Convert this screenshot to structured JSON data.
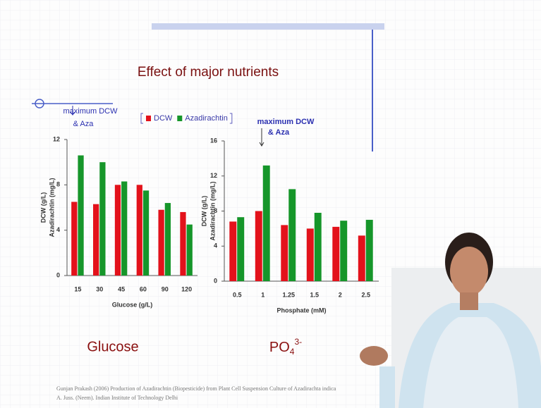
{
  "title": "Effect of major nutrients",
  "chart_data": [
    {
      "type": "bar",
      "x_label": "Glucose (g/L)",
      "y_labels": [
        "DCW (g/L)",
        "Azadirachtin (mg/L)"
      ],
      "annotation": [
        "maximum DCW",
        "& Aza"
      ],
      "legend": true,
      "categories": [
        "15",
        "30",
        "45",
        "60",
        "90",
        "120"
      ],
      "series": [
        {
          "name": "DCW",
          "color": "#e3121b",
          "values": [
            6.5,
            6.3,
            8.0,
            8.0,
            5.8,
            5.6
          ]
        },
        {
          "name": "Azadirachtin",
          "color": "#16962a",
          "values": [
            10.6,
            10.0,
            8.3,
            7.5,
            6.4,
            4.5
          ]
        }
      ],
      "ylim": [
        0,
        12
      ],
      "yticks": [
        0,
        4,
        8,
        12
      ],
      "caption": "Glucose"
    },
    {
      "type": "bar",
      "x_label": "Phosphate (mM)",
      "y_labels": [
        "DCW (g/L)",
        "Azadirachtin (mg/L)"
      ],
      "annotation": [
        "maximum DCW",
        "& Aza"
      ],
      "legend": false,
      "categories": [
        "0.5",
        "1",
        "1.25",
        "1.5",
        "2",
        "2.5"
      ],
      "series": [
        {
          "name": "DCW",
          "color": "#e3121b",
          "values": [
            6.8,
            8.0,
            6.4,
            6.0,
            6.2,
            5.2
          ]
        },
        {
          "name": "Azadirachtin",
          "color": "#16962a",
          "values": [
            7.3,
            13.2,
            10.5,
            7.8,
            6.9,
            7.0
          ]
        }
      ],
      "ylim": [
        0,
        16
      ],
      "yticks": [
        0,
        4,
        8,
        12,
        16
      ],
      "caption": {
        "base": "PO",
        "sub": "4",
        "sup": "3-"
      }
    }
  ],
  "citation": [
    "Gunjan Prakash (2006) Production of Azadirachtin (Biopesticide) from Plant Cell Suspension Culture of Azadirachta indica",
    "A. Juss. (Neem). Indian Institute of Technology Delhi"
  ]
}
